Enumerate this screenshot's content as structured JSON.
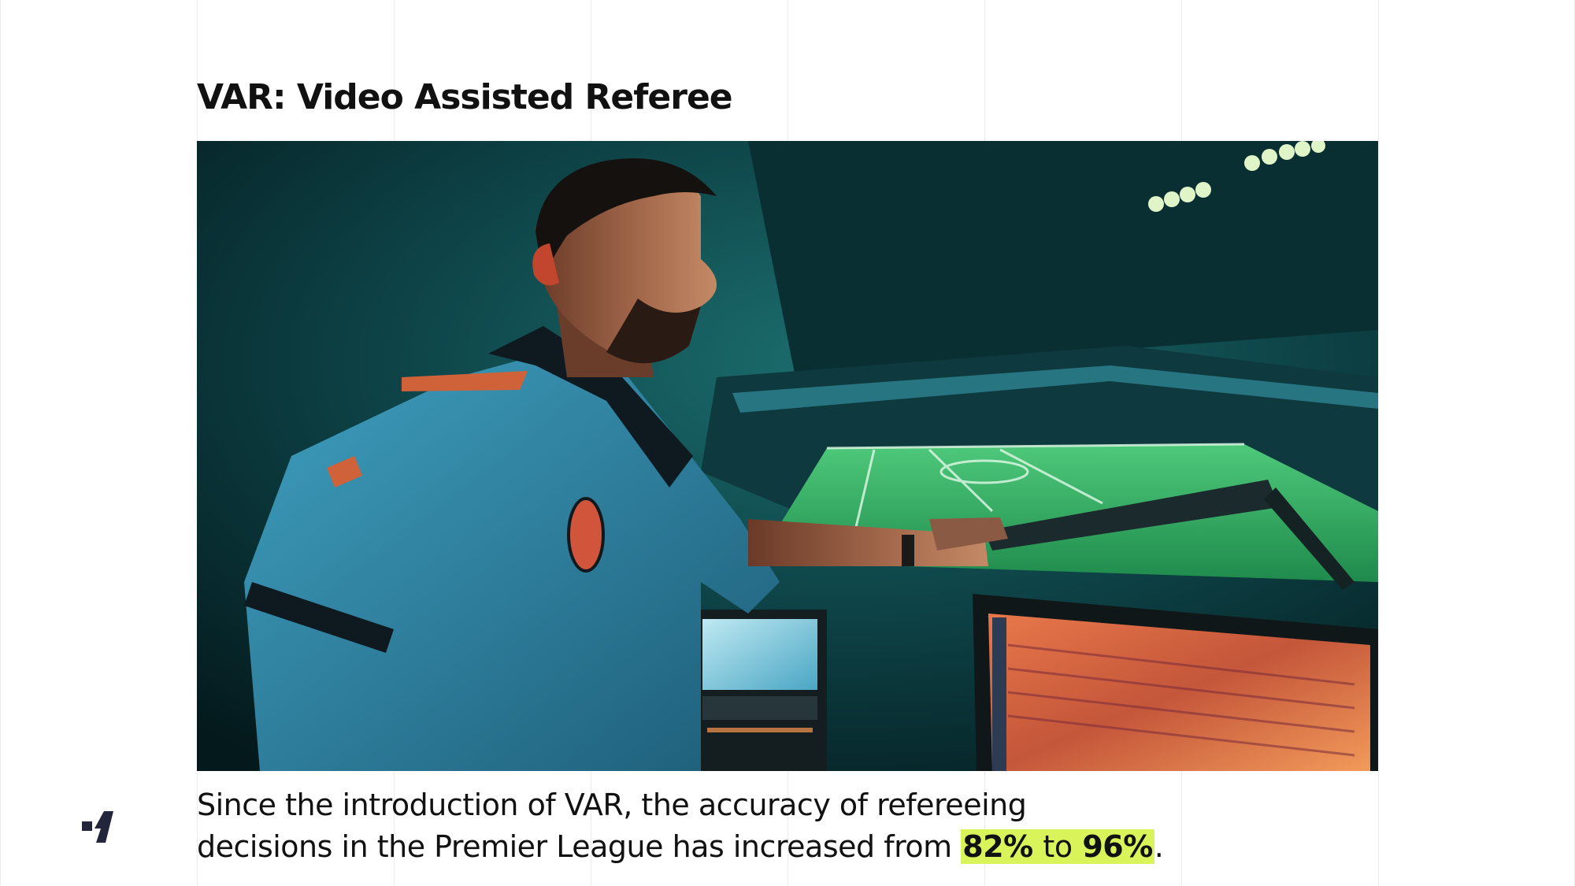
{
  "slide": {
    "title": "VAR: Video Assisted Referee",
    "photo_icon": "referee-var-room-photo",
    "logo_icon": "brand-mark-icon",
    "caption": {
      "line1": "Since the introduction of VAR, the accuracy of refereeing",
      "line2_prefix": "decisions in the Premier League has increased from",
      "value_before": "82%",
      "connector": "to",
      "value_after": "96%",
      "end": "."
    },
    "colors": {
      "highlight": "#d8f45a",
      "text": "#111111",
      "background": "#ffffff",
      "gridline": "#ececec"
    }
  }
}
